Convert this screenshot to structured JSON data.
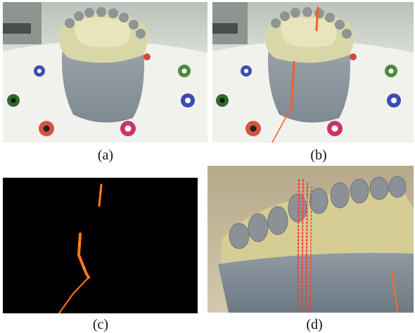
{
  "figure": {
    "panels": [
      {
        "caption": "(a)",
        "description_icon": "dental-cast-on-target-board"
      },
      {
        "caption": "(b)",
        "description_icon": "dental-cast-with-laser-line"
      },
      {
        "caption": "(c)",
        "description_icon": "extracted-laser-stripe"
      },
      {
        "caption": "(d)",
        "description_icon": "dental-cast-closeup-laser"
      }
    ]
  }
}
